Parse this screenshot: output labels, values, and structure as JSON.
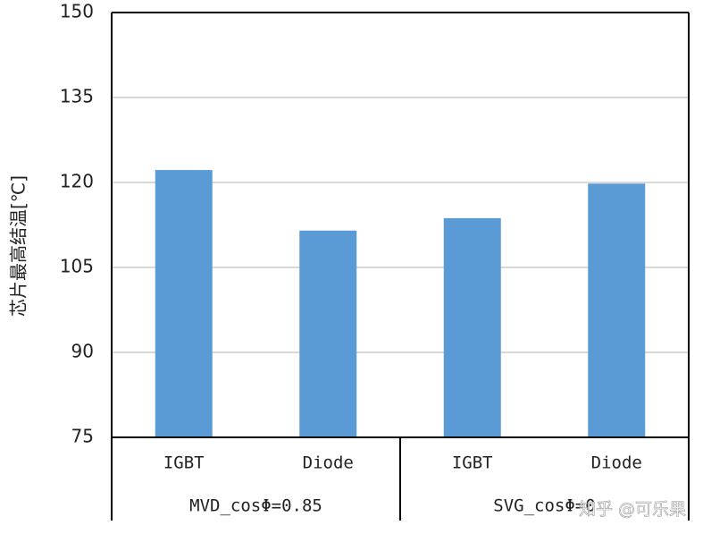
{
  "chart_data": {
    "type": "bar",
    "y_label": "芯片最高结温[℃]",
    "categories": [
      "IGBT",
      "Diode",
      "IGBT",
      "Diode"
    ],
    "category_groups": [
      "MVD_cosΦ=0.85",
      "SVG_cosΦ=0"
    ],
    "values": [
      122.2,
      111.5,
      113.7,
      119.8
    ],
    "color": "#5b9bd5",
    "ylim": [
      75,
      150
    ],
    "yticks": [
      75,
      90,
      105,
      120,
      135,
      150
    ],
    "grid": true,
    "watermark": "知乎 @可乐果"
  }
}
